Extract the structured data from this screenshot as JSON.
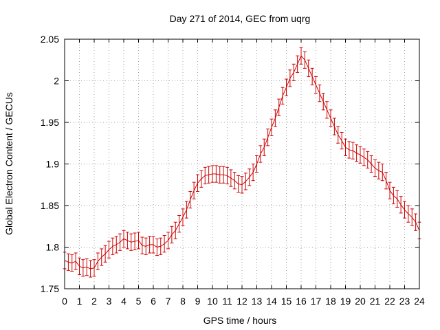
{
  "chart_data": {
    "type": "line",
    "title": "Day 271 of 2014, GEC from uqrg",
    "xlabel": "GPS time / hours",
    "ylabel": "Global Electron Content / GECUs",
    "xlim": [
      0,
      24
    ],
    "ylim": [
      1.75,
      2.05
    ],
    "xticks": [
      "0",
      "1",
      "2",
      "3",
      "4",
      "5",
      "6",
      "7",
      "8",
      "9",
      "10",
      "11",
      "12",
      "13",
      "14",
      "15",
      "16",
      "17",
      "18",
      "19",
      "20",
      "21",
      "22",
      "23",
      "24"
    ],
    "yticks": [
      "1.75",
      "1.8",
      "1.85",
      "1.9",
      "1.95",
      "2",
      "2.05"
    ],
    "grid": true,
    "series": [
      {
        "color": "#cc0000",
        "error": 0.01,
        "x": [
          0,
          0.25,
          0.5,
          0.75,
          1,
          1.25,
          1.5,
          1.75,
          2,
          2.25,
          2.5,
          2.75,
          3,
          3.25,
          3.5,
          3.75,
          4,
          4.25,
          4.5,
          4.75,
          5,
          5.25,
          5.5,
          5.75,
          6,
          6.25,
          6.5,
          6.75,
          7,
          7.25,
          7.5,
          7.75,
          8,
          8.25,
          8.5,
          8.75,
          9,
          9.25,
          9.5,
          9.75,
          10,
          10.25,
          10.5,
          10.75,
          11,
          11.25,
          11.5,
          11.75,
          12,
          12.25,
          12.5,
          12.75,
          13,
          13.25,
          13.5,
          13.75,
          14,
          14.25,
          14.5,
          14.75,
          15,
          15.25,
          15.5,
          15.75,
          16,
          16.25,
          16.5,
          16.75,
          17,
          17.25,
          17.5,
          17.75,
          18,
          18.25,
          18.5,
          18.75,
          19,
          19.25,
          19.5,
          19.75,
          20,
          20.25,
          20.5,
          20.75,
          21,
          21.25,
          21.5,
          21.75,
          22,
          22.25,
          22.5,
          22.75,
          23,
          23.25,
          23.5,
          23.75,
          24
        ],
        "y": [
          1.784,
          1.782,
          1.781,
          1.783,
          1.777,
          1.775,
          1.776,
          1.774,
          1.775,
          1.783,
          1.788,
          1.792,
          1.797,
          1.801,
          1.803,
          1.806,
          1.81,
          1.808,
          1.806,
          1.807,
          1.808,
          1.802,
          1.801,
          1.803,
          1.803,
          1.8,
          1.801,
          1.804,
          1.808,
          1.815,
          1.82,
          1.828,
          1.836,
          1.845,
          1.857,
          1.868,
          1.877,
          1.882,
          1.886,
          1.887,
          1.888,
          1.888,
          1.887,
          1.887,
          1.886,
          1.883,
          1.88,
          1.876,
          1.875,
          1.879,
          1.884,
          1.89,
          1.9,
          1.912,
          1.92,
          1.932,
          1.944,
          1.955,
          1.968,
          1.982,
          1.992,
          2.003,
          2.01,
          2.02,
          2.03,
          2.025,
          2.015,
          2.005,
          1.995,
          1.985,
          1.975,
          1.965,
          1.955,
          1.945,
          1.935,
          1.928,
          1.92,
          1.917,
          1.916,
          1.913,
          1.911,
          1.908,
          1.905,
          1.9,
          1.895,
          1.892,
          1.89,
          1.88,
          1.868,
          1.862,
          1.858,
          1.851,
          1.845,
          1.84,
          1.836,
          1.83,
          1.82
        ]
      }
    ]
  }
}
